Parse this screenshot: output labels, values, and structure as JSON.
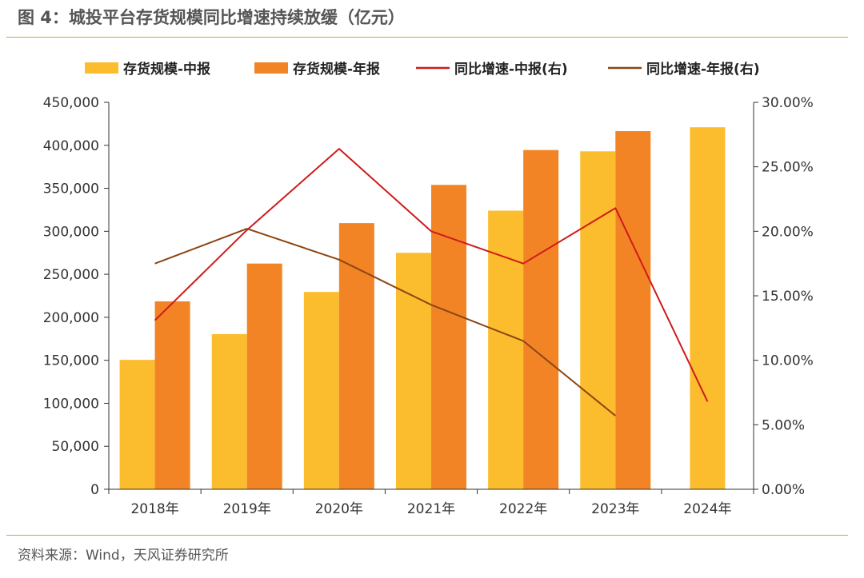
{
  "page": {
    "title": "图 4：城投平台存货规模同比增速持续放缓（亿元）",
    "source": "资料来源：Wind，天风证券研究所"
  },
  "chart_data": {
    "type": "bar",
    "categories": [
      "2018年",
      "2019年",
      "2020年",
      "2021年",
      "2022年",
      "2023年",
      "2024年"
    ],
    "series": [
      {
        "name": "存货规模-中报",
        "type": "bar",
        "axis": "left",
        "color": "#FBBD2E",
        "values": [
          150500,
          180500,
          229500,
          275000,
          324000,
          393000,
          421000
        ]
      },
      {
        "name": "存货规模-年报",
        "type": "bar",
        "axis": "left",
        "color": "#F28425",
        "values": [
          218500,
          262500,
          309500,
          354000,
          394500,
          416500,
          null
        ]
      },
      {
        "name": "同比增速-中报(右)",
        "type": "line",
        "axis": "right",
        "color": "#D01A1A",
        "values": [
          13.1,
          20.1,
          26.4,
          20.0,
          17.5,
          21.8,
          6.8
        ]
      },
      {
        "name": "同比增速-年报(右)",
        "type": "line",
        "axis": "right",
        "color": "#8B4513",
        "values": [
          17.5,
          20.2,
          17.8,
          14.3,
          11.5,
          5.7,
          null
        ]
      }
    ],
    "y_left": {
      "min": 0,
      "max": 450000,
      "step": 50000,
      "ticks": [
        "0",
        "50,000",
        "100,000",
        "150,000",
        "200,000",
        "250,000",
        "300,000",
        "350,000",
        "400,000",
        "450,000"
      ]
    },
    "y_right": {
      "min": 0,
      "max": 30,
      "step": 5,
      "ticks": [
        "0.00%",
        "5.00%",
        "10.00%",
        "15.00%",
        "20.00%",
        "25.00%",
        "30.00%"
      ]
    },
    "grid": false,
    "legend_position": "top"
  }
}
